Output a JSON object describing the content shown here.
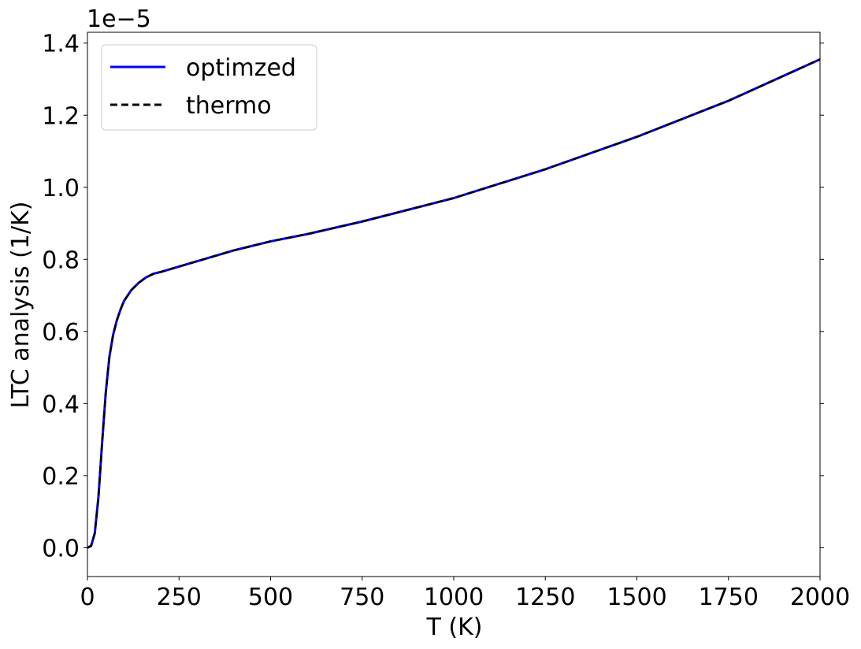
{
  "chart_data": {
    "type": "line",
    "xlabel": "T (K)",
    "ylabel": "LTC analysis (1/K)",
    "offset_text": "1e−5",
    "xlim": [
      0,
      2000
    ],
    "ylim": [
      -0.08,
      1.43
    ],
    "xticks": [
      0,
      250,
      500,
      750,
      1000,
      1250,
      1500,
      1750,
      2000
    ],
    "xtick_labels": [
      "0",
      "250",
      "500",
      "750",
      "1000",
      "1250",
      "1500",
      "1750",
      "2000"
    ],
    "yticks": [
      0.0,
      0.2,
      0.4,
      0.6,
      0.8,
      1.0,
      1.2,
      1.4
    ],
    "ytick_labels": [
      "0.0",
      "0.2",
      "0.4",
      "0.6",
      "0.8",
      "1.0",
      "1.2",
      "1.4"
    ],
    "grid": false,
    "legend_position": "top-left",
    "x": [
      0,
      10,
      20,
      30,
      40,
      50,
      60,
      70,
      80,
      90,
      100,
      120,
      140,
      160,
      180,
      200,
      250,
      300,
      400,
      500,
      600,
      750,
      1000,
      1250,
      1500,
      1750,
      2000
    ],
    "series": [
      {
        "name": "optimzed",
        "color": "#0000ff",
        "style": "solid",
        "values": [
          0.0,
          0.005,
          0.04,
          0.14,
          0.29,
          0.43,
          0.53,
          0.59,
          0.63,
          0.66,
          0.685,
          0.715,
          0.735,
          0.75,
          0.76,
          0.765,
          0.78,
          0.795,
          0.825,
          0.85,
          0.87,
          0.905,
          0.97,
          1.05,
          1.14,
          1.24,
          1.355
        ]
      },
      {
        "name": "thermo",
        "color": "#000000",
        "style": "dashed",
        "values": [
          0.0,
          0.005,
          0.04,
          0.14,
          0.29,
          0.43,
          0.53,
          0.59,
          0.63,
          0.66,
          0.685,
          0.715,
          0.735,
          0.75,
          0.76,
          0.765,
          0.78,
          0.795,
          0.825,
          0.85,
          0.87,
          0.905,
          0.97,
          1.05,
          1.14,
          1.24,
          1.355
        ]
      }
    ]
  }
}
